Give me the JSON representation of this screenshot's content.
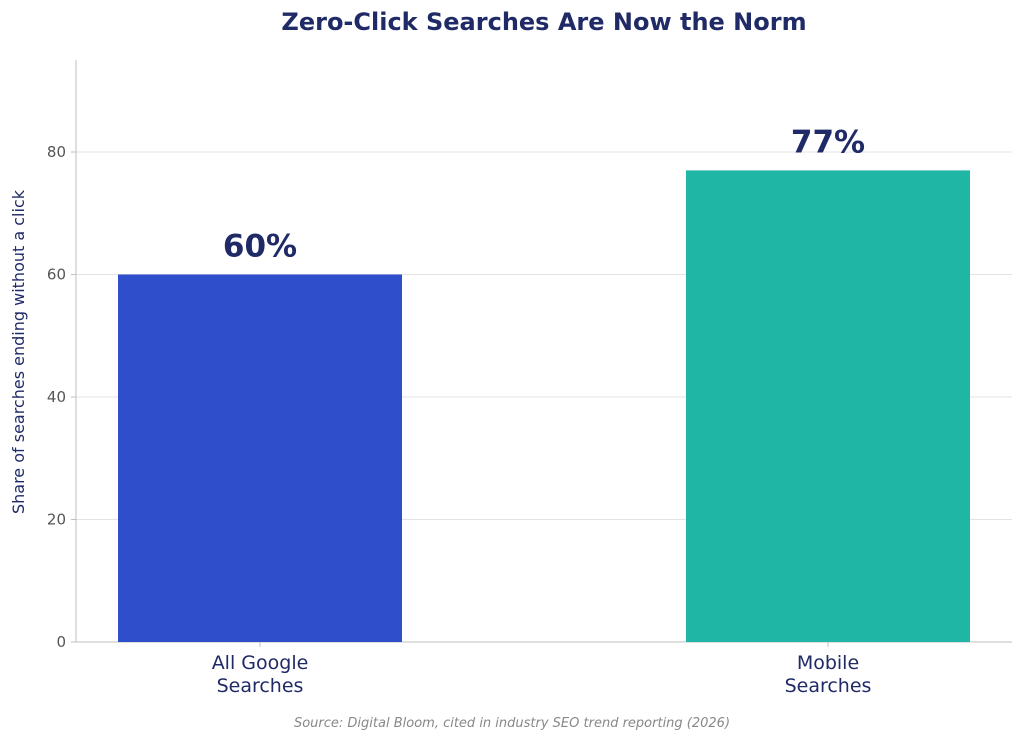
{
  "chart_data": {
    "type": "bar",
    "title": "Zero-Click Searches Are Now the Norm",
    "xlabel": "",
    "ylabel": "Share of searches ending without a click",
    "categories": [
      [
        "All Google",
        "Searches"
      ],
      [
        "Mobile",
        "Searches"
      ]
    ],
    "values": [
      60,
      77
    ],
    "data_labels": [
      "60%",
      "77%"
    ],
    "colors": [
      "#2f4ecb",
      "#20b6a5"
    ],
    "ylim": [
      0,
      95
    ],
    "yticks": [
      0,
      20,
      40,
      60,
      80
    ],
    "grid": true,
    "legend": "none",
    "source": "Source: Digital Bloom, cited in industry SEO trend reporting (2026)"
  }
}
